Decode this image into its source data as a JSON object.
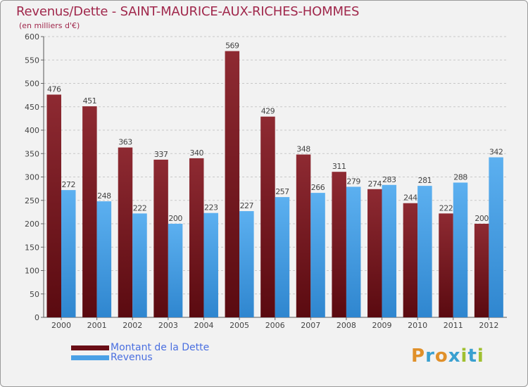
{
  "title": "Revenus/Dette - SAINT-MAURICE-AUX-RICHES-HOMMES",
  "subtitle": "(en milliers d'€)",
  "colors": {
    "title": "#a0284c",
    "dette": "#7a1a22",
    "revenus": "#4aa0e6",
    "legend_text": "#4a6fe0"
  },
  "logo": {
    "text": "Proxiti",
    "letters": [
      "P",
      "r",
      "o",
      "x",
      "i",
      "t",
      "i"
    ],
    "colors": [
      "#e0902a",
      "#3aa0d0",
      "#e0902a",
      "#3aa0d0",
      "#a0c030",
      "#3aa0d0",
      "#a0c030"
    ]
  },
  "chart_data": {
    "type": "bar",
    "title": "Revenus/Dette - SAINT-MAURICE-AUX-RICHES-HOMMES",
    "subtitle": "(en milliers d'€)",
    "categories": [
      "2000",
      "2001",
      "2002",
      "2003",
      "2004",
      "2005",
      "2006",
      "2007",
      "2008",
      "2009",
      "2010",
      "2011",
      "2012"
    ],
    "series": [
      {
        "name": "Montant de la Dette",
        "values": [
          476,
          451,
          363,
          337,
          340,
          569,
          429,
          348,
          311,
          274,
          244,
          222,
          200
        ]
      },
      {
        "name": "Revenus",
        "values": [
          272,
          248,
          222,
          200,
          223,
          227,
          257,
          266,
          279,
          283,
          281,
          288,
          342
        ]
      }
    ],
    "yticks": [
      0,
      50,
      100,
      150,
      200,
      250,
      300,
      350,
      400,
      450,
      500,
      550,
      600
    ],
    "ylim": [
      0,
      600
    ],
    "grid": true,
    "legend_position": "bottom-left"
  }
}
